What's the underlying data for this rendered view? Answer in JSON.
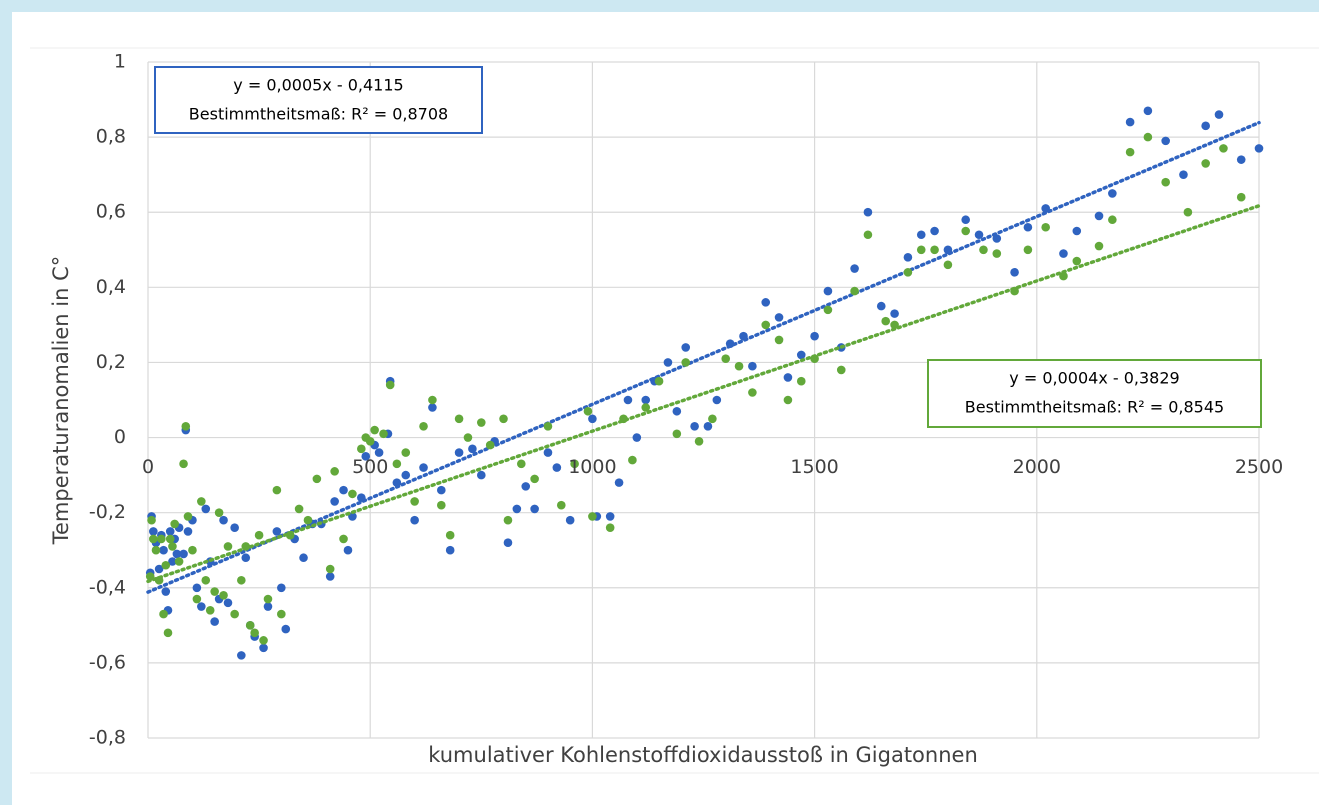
{
  "chart_data": {
    "type": "scatter",
    "x_label": "kumulativer Kohlenstoffdioxidausstoß in Gigatonnen",
    "y_label": "Temperaturanomalien in C°",
    "xlim": [
      0,
      2500
    ],
    "ylim": [
      -0.8,
      1
    ],
    "xticks": [
      0,
      500,
      1000,
      1500,
      2000,
      2500
    ],
    "yticks": [
      1,
      {
        "value": 0.8,
        "label": "0,8"
      },
      {
        "value": 0.6,
        "label": "0,6"
      },
      {
        "value": 0.4,
        "label": "0,4"
      },
      {
        "value": 0.2,
        "label": "0,2"
      },
      0,
      {
        "value": -0.2,
        "label": "-0,2"
      },
      {
        "value": -0.4,
        "label": "-0,4"
      },
      {
        "value": -0.6,
        "label": "-0,6"
      },
      {
        "value": -0.8,
        "label": "-0,8"
      }
    ],
    "grid": true,
    "series": [
      {
        "color": "#2f63c0",
        "x": [
          5,
          8,
          12,
          18,
          25,
          30,
          35,
          40,
          45,
          50,
          55,
          60,
          65,
          70,
          80,
          85,
          90,
          100,
          110,
          120,
          130,
          140,
          150,
          160,
          170,
          180,
          195,
          210,
          220,
          230,
          240,
          260,
          270,
          290,
          300,
          310,
          330,
          350,
          370,
          390,
          410,
          420,
          440,
          450,
          460,
          480,
          490,
          510,
          520,
          540,
          545,
          560,
          580,
          600,
          620,
          640,
          660,
          680,
          700,
          730,
          750,
          780,
          810,
          830,
          850,
          870,
          900,
          920,
          950,
          1000,
          1010,
          1040,
          1060,
          1080,
          1100,
          1120,
          1140,
          1170,
          1190,
          1210,
          1230,
          1260,
          1280,
          1310,
          1340,
          1360,
          1390,
          1420,
          1440,
          1470,
          1500,
          1530,
          1560,
          1590,
          1620,
          1650,
          1680,
          1710,
          1740,
          1770,
          1800,
          1840,
          1870,
          1910,
          1950,
          1980,
          2020,
          2060,
          2090,
          2140,
          2170,
          2210,
          2250,
          2290,
          2330,
          2380,
          2410,
          2460,
          2500
        ],
        "values": [
          -0.36,
          -0.21,
          -0.25,
          -0.28,
          -0.35,
          -0.26,
          -0.3,
          -0.41,
          -0.46,
          -0.25,
          -0.33,
          -0.27,
          -0.31,
          -0.24,
          -0.31,
          0.02,
          -0.25,
          -0.22,
          -0.4,
          -0.45,
          -0.19,
          -0.33,
          -0.49,
          -0.43,
          -0.22,
          -0.44,
          -0.24,
          -0.58,
          -0.32,
          -0.5,
          -0.53,
          -0.56,
          -0.45,
          -0.25,
          -0.4,
          -0.51,
          -0.27,
          -0.32,
          -0.23,
          -0.23,
          -0.37,
          -0.17,
          -0.14,
          -0.3,
          -0.21,
          -0.16,
          -0.05,
          -0.02,
          -0.04,
          0.01,
          0.15,
          -0.12,
          -0.1,
          -0.22,
          -0.08,
          0.08,
          -0.14,
          -0.3,
          -0.04,
          -0.03,
          -0.1,
          -0.01,
          -0.28,
          -0.19,
          -0.13,
          -0.19,
          -0.04,
          -0.08,
          -0.22,
          0.05,
          -0.21,
          -0.21,
          -0.12,
          0.1,
          0.0,
          0.1,
          0.15,
          0.2,
          0.07,
          0.24,
          0.03,
          0.03,
          0.1,
          0.25,
          0.27,
          0.19,
          0.36,
          0.32,
          0.16,
          0.22,
          0.27,
          0.39,
          0.24,
          0.45,
          0.6,
          0.35,
          0.33,
          0.48,
          0.54,
          0.55,
          0.5,
          0.58,
          0.54,
          0.53,
          0.44,
          0.56,
          0.61,
          0.49,
          0.55,
          0.59,
          0.65,
          0.84,
          0.87,
          0.79,
          0.7,
          0.83,
          0.86,
          0.74,
          0.77
        ],
        "trendline": {
          "slope": 0.0005,
          "intercept": -0.4115,
          "equation": "y = 0,0005x - 0,4115",
          "r2": "Bestimmtheitsmaß: R² = 0,8708"
        }
      },
      {
        "color": "#62a83a",
        "x": [
          5,
          8,
          12,
          18,
          25,
          30,
          35,
          40,
          45,
          50,
          55,
          60,
          70,
          80,
          85,
          90,
          100,
          110,
          120,
          130,
          140,
          150,
          160,
          170,
          180,
          195,
          210,
          220,
          230,
          240,
          250,
          260,
          270,
          290,
          300,
          320,
          340,
          360,
          380,
          410,
          420,
          440,
          460,
          480,
          490,
          500,
          510,
          530,
          545,
          560,
          580,
          600,
          620,
          640,
          660,
          680,
          700,
          720,
          750,
          770,
          800,
          810,
          840,
          870,
          900,
          930,
          960,
          990,
          1000,
          1040,
          1070,
          1090,
          1120,
          1150,
          1190,
          1210,
          1240,
          1270,
          1300,
          1330,
          1360,
          1390,
          1420,
          1440,
          1470,
          1500,
          1530,
          1560,
          1590,
          1620,
          1660,
          1680,
          1710,
          1740,
          1770,
          1800,
          1840,
          1880,
          1910,
          1950,
          1980,
          2020,
          2060,
          2090,
          2140,
          2170,
          2210,
          2250,
          2290,
          2340,
          2380,
          2420,
          2460
        ],
        "values": [
          -0.37,
          -0.22,
          -0.27,
          -0.3,
          -0.38,
          -0.27,
          -0.47,
          -0.34,
          -0.52,
          -0.27,
          -0.29,
          -0.23,
          -0.33,
          -0.07,
          0.03,
          -0.21,
          -0.3,
          -0.43,
          -0.17,
          -0.38,
          -0.46,
          -0.41,
          -0.2,
          -0.42,
          -0.29,
          -0.47,
          -0.38,
          -0.29,
          -0.5,
          -0.52,
          -0.26,
          -0.54,
          -0.43,
          -0.14,
          -0.47,
          -0.26,
          -0.19,
          -0.22,
          -0.11,
          -0.35,
          -0.09,
          -0.27,
          -0.15,
          -0.03,
          0.0,
          -0.01,
          0.02,
          0.01,
          0.14,
          -0.07,
          -0.04,
          -0.17,
          0.03,
          0.1,
          -0.18,
          -0.26,
          0.05,
          0.0,
          0.04,
          -0.02,
          0.05,
          -0.22,
          -0.07,
          -0.11,
          0.03,
          -0.18,
          -0.07,
          0.07,
          -0.21,
          -0.24,
          0.05,
          -0.06,
          0.08,
          0.15,
          0.01,
          0.2,
          -0.01,
          0.05,
          0.21,
          0.19,
          0.12,
          0.3,
          0.26,
          0.1,
          0.15,
          0.21,
          0.34,
          0.18,
          0.39,
          0.54,
          0.31,
          0.3,
          0.44,
          0.5,
          0.5,
          0.46,
          0.55,
          0.5,
          0.49,
          0.39,
          0.5,
          0.56,
          0.43,
          0.47,
          0.51,
          0.58,
          0.76,
          0.8,
          0.68,
          0.6,
          0.73,
          0.77,
          0.64
        ],
        "trendline": {
          "slope": 0.0004,
          "intercept": -0.3829,
          "equation": "y = 0,0004x - 0,3829",
          "r2": "Bestimmtheitsmaß: R² = 0,8545"
        }
      }
    ]
  }
}
